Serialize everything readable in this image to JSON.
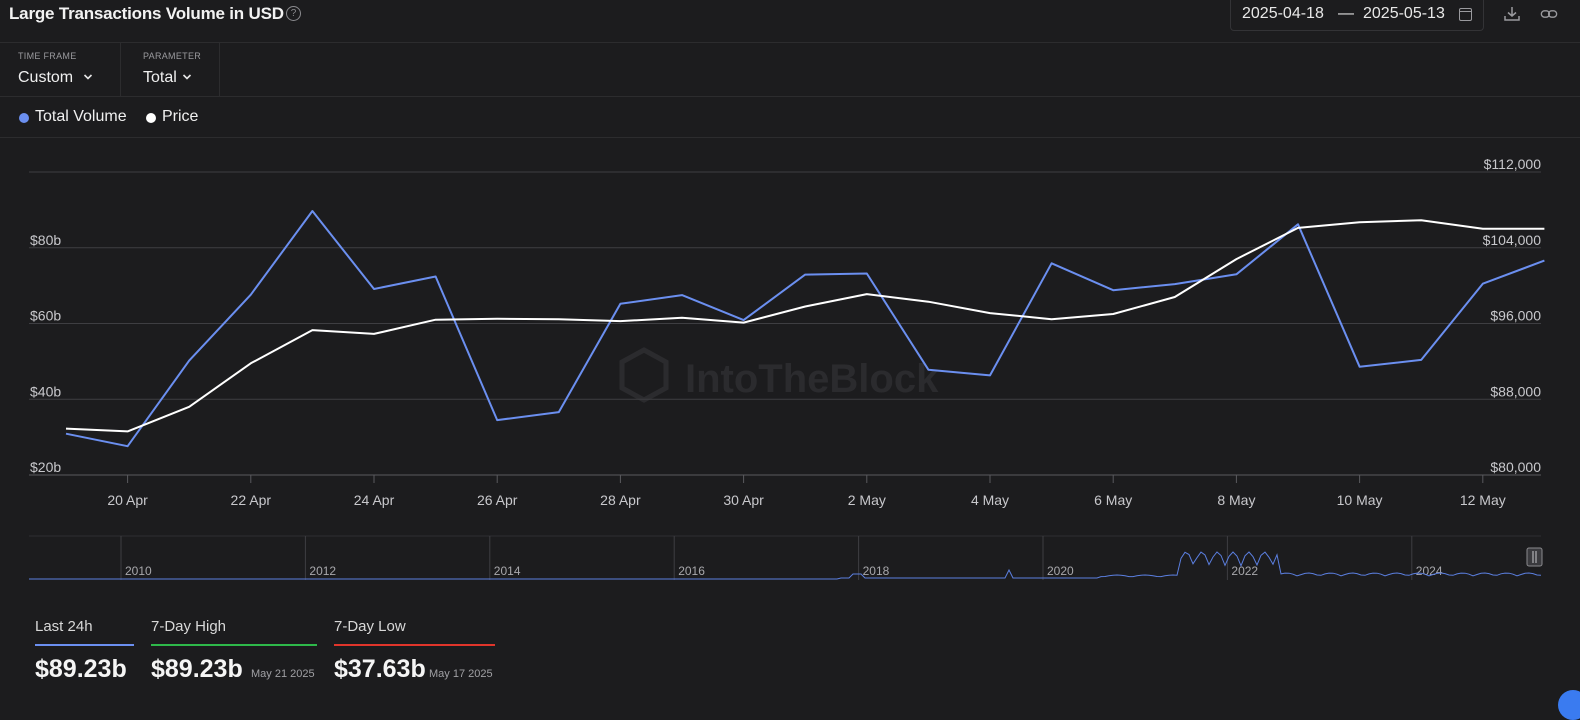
{
  "header": {
    "title": "Large Transactions Volume in USD",
    "date_from": "2025-04-18",
    "date_sep": "—",
    "date_to": "2025-05-13"
  },
  "controls": {
    "time_frame_label": "TIME FRAME",
    "time_frame_value": "Custom",
    "parameter_label": "PARAMETER",
    "parameter_value": "Total"
  },
  "legend": [
    {
      "label": "Total Volume",
      "color": "#6b8ff0"
    },
    {
      "label": "Price",
      "color": "#ffffff"
    }
  ],
  "watermark": "IntoTheBlock",
  "chart_data": {
    "type": "line",
    "x": [
      "19 Apr",
      "20 Apr",
      "21 Apr",
      "22 Apr",
      "23 Apr",
      "24 Apr",
      "25 Apr",
      "26 Apr",
      "27 Apr",
      "28 Apr",
      "29 Apr",
      "30 Apr",
      "1 May",
      "2 May",
      "3 May",
      "4 May",
      "5 May",
      "6 May",
      "7 May",
      "8 May",
      "9 May",
      "10 May",
      "11 May",
      "12 May",
      "13 May"
    ],
    "x_tick_labels": [
      "20 Apr",
      "22 Apr",
      "24 Apr",
      "26 Apr",
      "28 Apr",
      "30 Apr",
      "2 May",
      "4 May",
      "6 May",
      "8 May",
      "10 May",
      "12 May"
    ],
    "series": [
      {
        "name": "Total Volume",
        "axis": "left",
        "color": "#6b8ff0",
        "values": [
          30.9,
          27.6,
          50.2,
          67.6,
          89.7,
          69.1,
          72.4,
          34.5,
          36.6,
          65.2,
          67.5,
          60.9,
          72.9,
          73.2,
          47.8,
          46.3,
          75.9,
          68.8,
          70.4,
          73.0,
          86.2,
          48.6,
          50.4,
          70.5,
          76.6
        ]
      },
      {
        "name": "Price",
        "axis": "right",
        "color": "#ffffff",
        "values": [
          84900,
          84600,
          87200,
          91800,
          95300,
          94900,
          96400,
          96500,
          96450,
          96250,
          96600,
          96100,
          97800,
          99100,
          98300,
          97100,
          96450,
          97000,
          98800,
          102800,
          106100,
          106700,
          106900,
          106000,
          106000
        ]
      }
    ],
    "y_left_ticks": [
      "$20b",
      "$40b",
      "$60b",
      "$80b"
    ],
    "y_left_range": [
      20,
      100
    ],
    "y_right_ticks": [
      "$80,000",
      "$88,000",
      "$96,000",
      "$104,000",
      "$112,000"
    ],
    "y_right_range": [
      80000,
      112000
    ],
    "grid": true
  },
  "navigator": {
    "year_labels": [
      "2010",
      "2012",
      "2014",
      "2016",
      "2018",
      "2020",
      "2022",
      "2024"
    ]
  },
  "stats": [
    {
      "label": "Last 24h",
      "value": "$89.23b",
      "date": "",
      "color": "#6b8ff0"
    },
    {
      "label": "7-Day High",
      "value": "$89.23b",
      "date": "May 21 2025",
      "color": "#2eb84a"
    },
    {
      "label": "7-Day Low",
      "value": "$37.63b",
      "date": "May 17 2025",
      "color": "#e0352b"
    }
  ]
}
